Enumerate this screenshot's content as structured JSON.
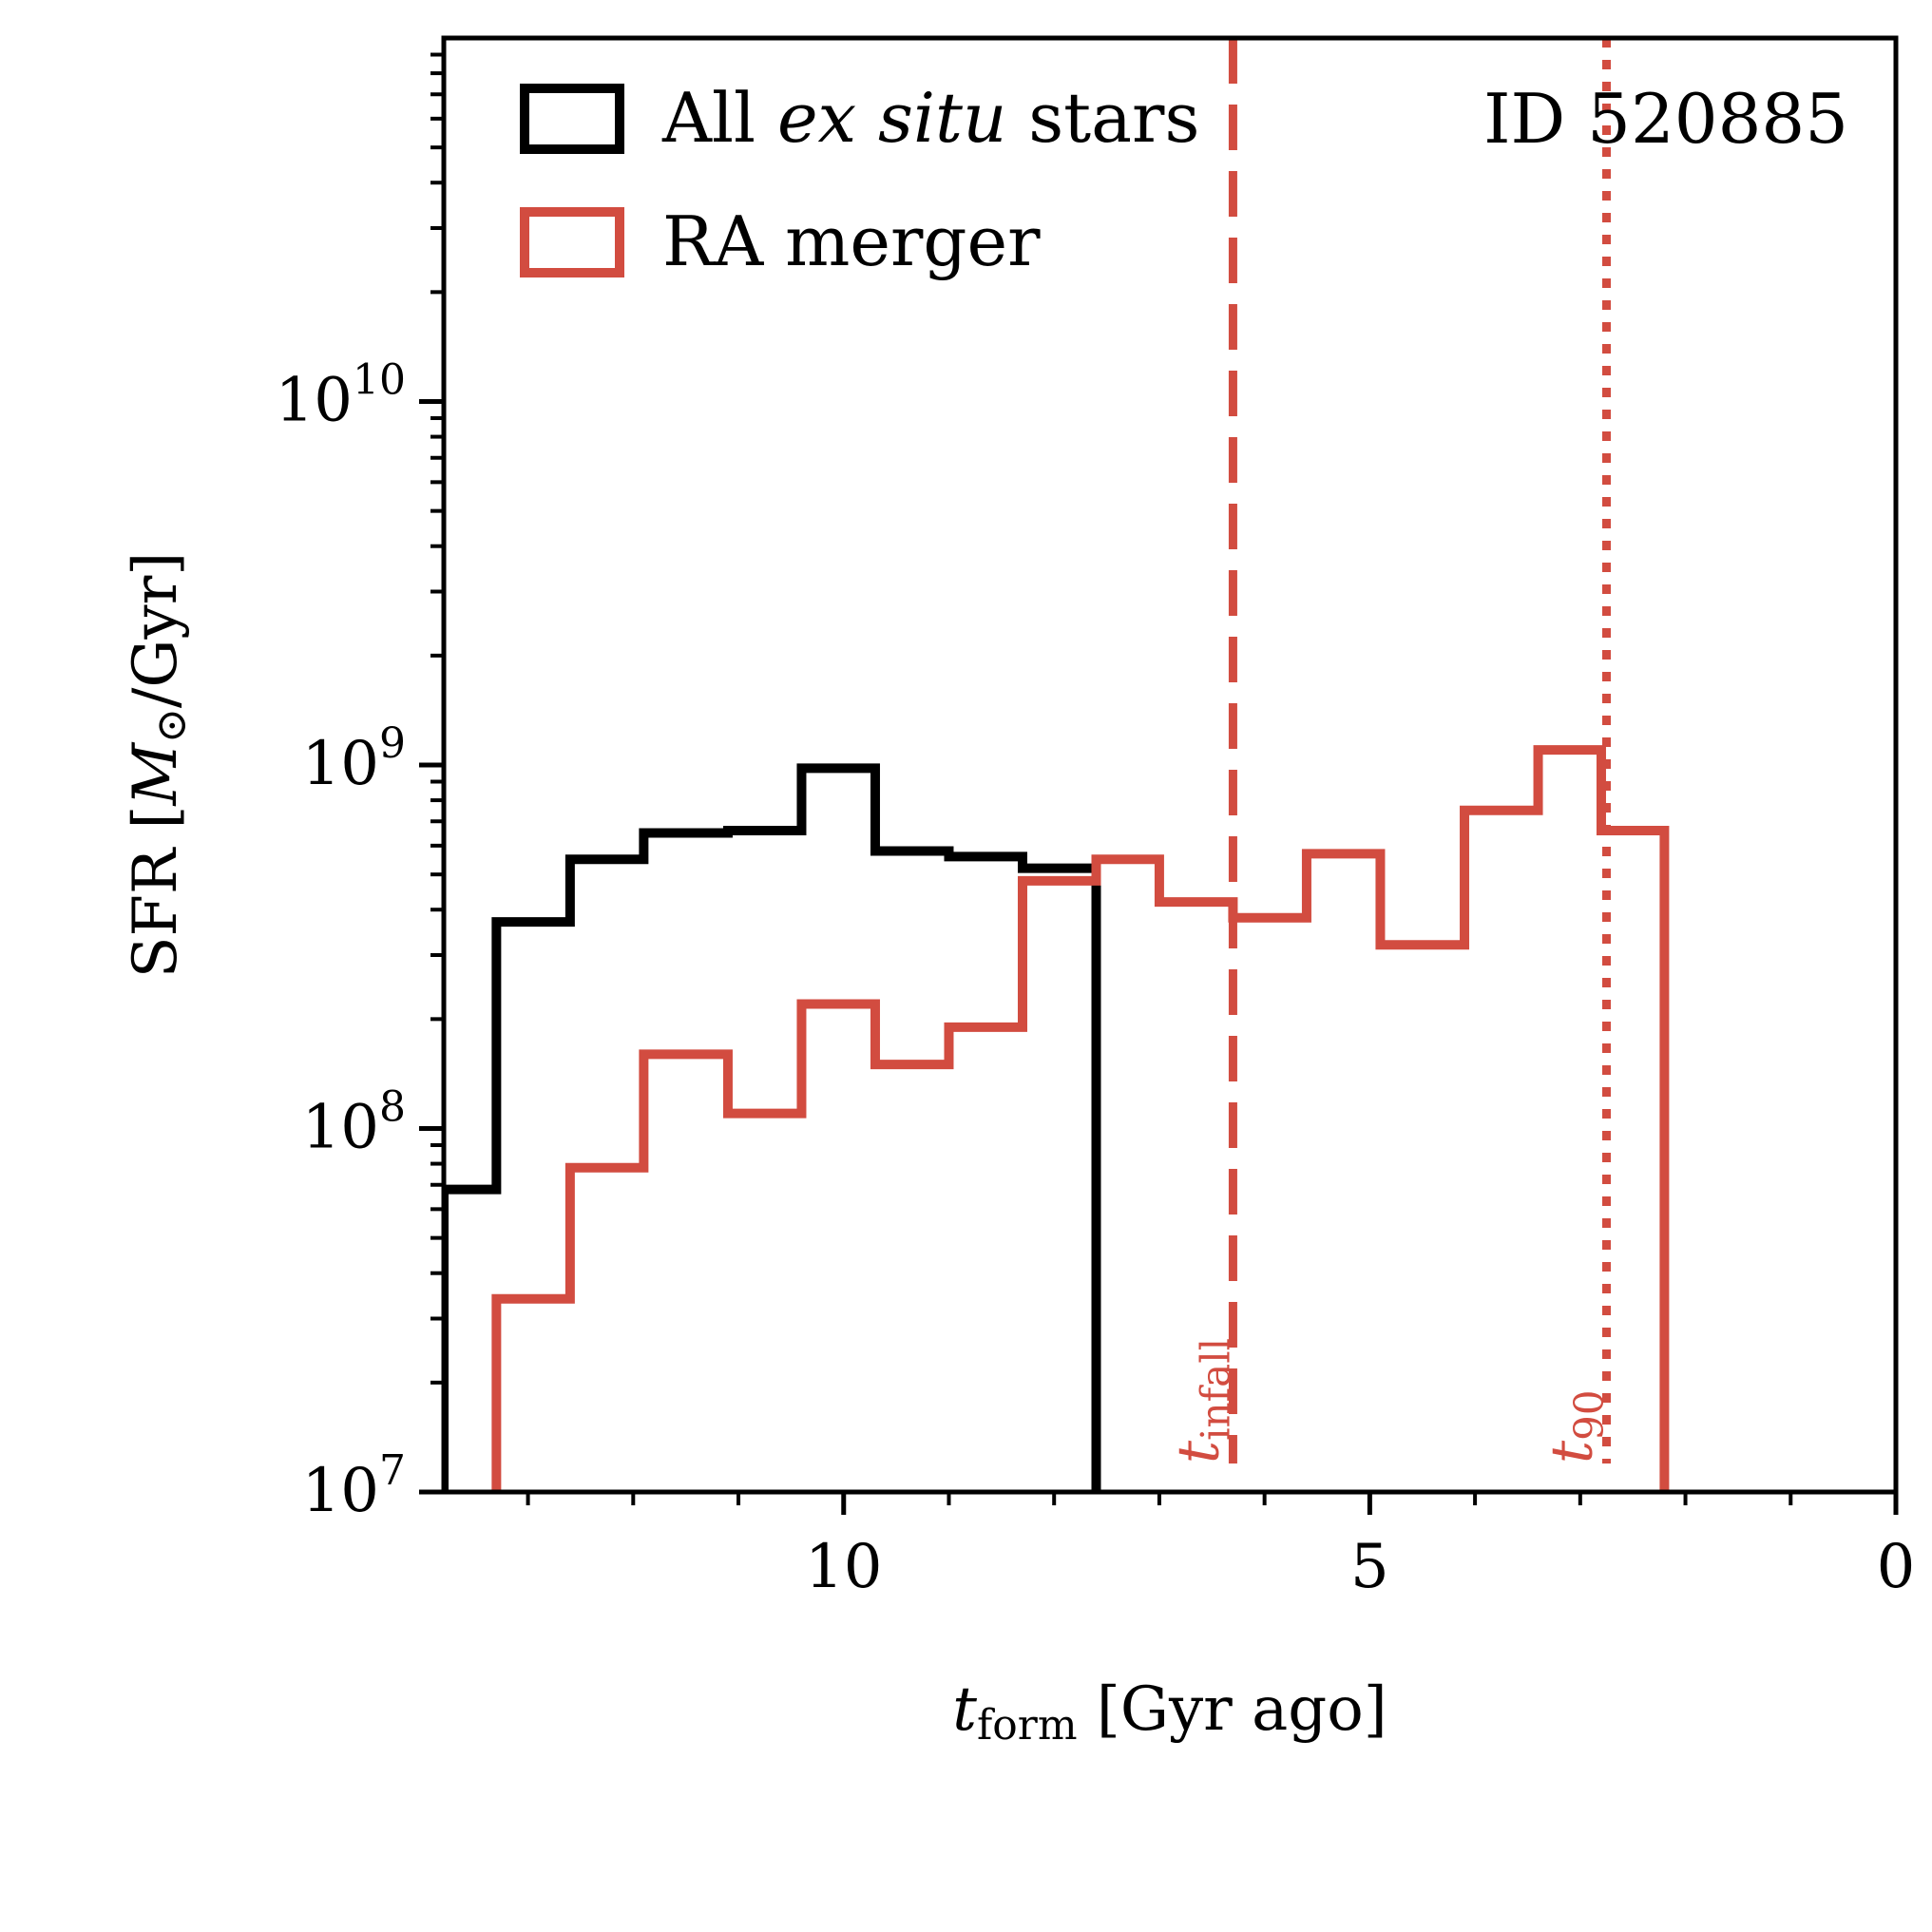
{
  "colors": {
    "all_ex_situ": "#000000",
    "ra_merger": "#d24c40",
    "axis": "#000000",
    "background": "#ffffff"
  },
  "chart_data": {
    "type": "histogram-step",
    "title": "",
    "annotation": "ID 520885",
    "xlabel": {
      "main": "t",
      "sub": "form",
      "rest": " [Gyr ago]"
    },
    "ylabel": {
      "prefix": "SFR [",
      "symbol": "M",
      "sub": "⊙",
      "suffix": "/Gyr]"
    },
    "x_axis": {
      "range": [
        13.8,
        0
      ],
      "inverted": true,
      "major_ticks": [
        10,
        5,
        0
      ],
      "major_tick_labels": [
        "10",
        "5",
        "0"
      ],
      "minor_ticks": [
        13,
        12,
        11,
        9,
        8,
        7,
        6,
        4,
        3,
        2,
        1
      ]
    },
    "y_axis": {
      "scale": "log",
      "range": [
        10000000.0,
        100000000000.0
      ],
      "major_ticks": [
        10000000.0,
        100000000.0,
        1000000000.0,
        10000000000.0
      ],
      "major_tick_labels": [
        {
          "base": "10",
          "exp": "7"
        },
        {
          "base": "10",
          "exp": "8"
        },
        {
          "base": "10",
          "exp": "9"
        },
        {
          "base": "10",
          "exp": "10"
        }
      ]
    },
    "legend": {
      "placement": "top-left",
      "entries": [
        {
          "series": "all_ex_situ",
          "parts": [
            {
              "text": "All ",
              "italic": false
            },
            {
              "text": "ex situ",
              "italic": true
            },
            {
              "text": " stars",
              "italic": false
            }
          ]
        },
        {
          "series": "ra_merger",
          "parts": [
            {
              "text": "RA merger",
              "italic": false
            }
          ]
        }
      ]
    },
    "series": [
      {
        "key": "all_ex_situ",
        "name": "All ex situ stars",
        "edges": [
          13.8,
          13.3,
          12.6,
          11.9,
          11.1,
          10.4,
          9.7,
          9.0,
          8.3,
          7.6
        ],
        "values": [
          68000000.0,
          370000000.0,
          550000000.0,
          650000000.0,
          660000000.0,
          980000000.0,
          580000000.0,
          560000000.0,
          520000000.0
        ]
      },
      {
        "key": "ra_merger",
        "name": "RA merger",
        "edges": [
          13.3,
          12.6,
          11.9,
          11.1,
          10.4,
          9.7,
          9.0,
          8.3,
          7.6,
          7.0,
          6.3,
          5.6,
          4.9,
          4.1,
          3.4,
          2.8,
          2.2
        ],
        "values": [
          34000000.0,
          78000000.0,
          160000000.0,
          110000000.0,
          220000000.0,
          150000000.0,
          190000000.0,
          480000000.0,
          550000000.0,
          420000000.0,
          380000000.0,
          570000000.0,
          320000000.0,
          750000000.0,
          1100000000.0,
          660000000.0
        ]
      }
    ],
    "vlines": [
      {
        "x": 6.3,
        "style": "dashed",
        "series_color": "ra_merger",
        "label_main": "t",
        "label_sub": "infall"
      },
      {
        "x": 2.75,
        "style": "dotted",
        "series_color": "ra_merger",
        "label_main": "t",
        "label_sub": "90"
      }
    ]
  }
}
